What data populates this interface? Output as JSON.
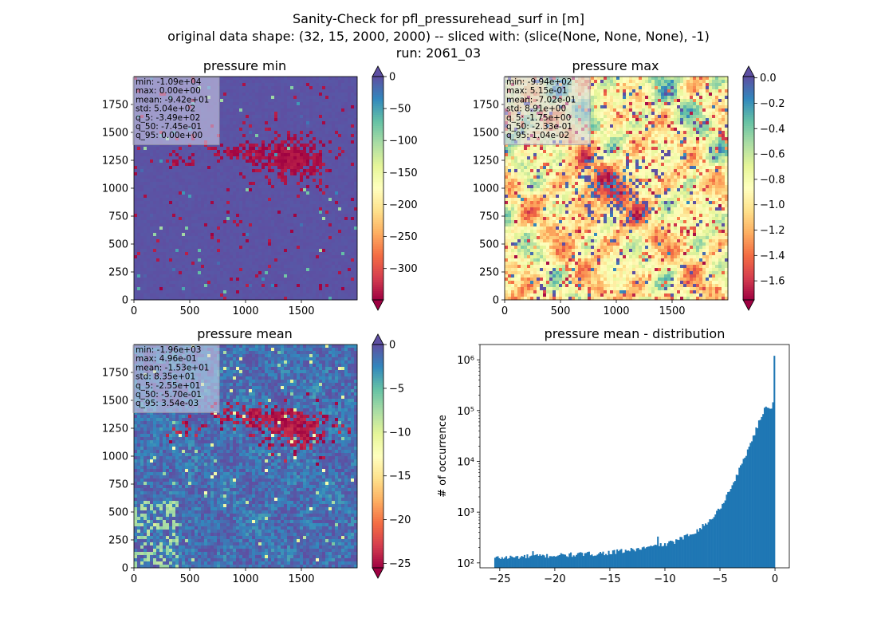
{
  "suptitle": {
    "line1": "Sanity-Check for pfl_pressurehead_surf in [m]",
    "line2": "original data shape: (32, 15, 2000, 2000) -- sliced with: (slice(None, None, None), -1)",
    "line3": "run: 2061_03"
  },
  "colors": {
    "spectral": [
      "#9e0142",
      "#d53e4f",
      "#f46d43",
      "#fdae61",
      "#fee08b",
      "#ffffbf",
      "#e6f598",
      "#abdda4",
      "#66c2a5",
      "#3288bd",
      "#5e4fa2"
    ],
    "hist_bar": "#1f77b4",
    "stats_box_bg": "#c8c8e6"
  },
  "chart_data": [
    {
      "type": "heatmap",
      "title": "pressure min",
      "xticks": [
        0,
        500,
        1000,
        1500
      ],
      "yticks": [
        0,
        250,
        500,
        750,
        1000,
        1250,
        1500,
        1750
      ],
      "xlim": [
        0,
        2000
      ],
      "ylim": [
        0,
        2000
      ],
      "colorbar": {
        "ticks": [
          0,
          -50,
          -100,
          -150,
          -200,
          -250,
          -300
        ],
        "ticklabels": [
          "0",
          "−50",
          "−100",
          "−150",
          "−200",
          "−250",
          "−300"
        ],
        "vmin": -349,
        "vmax": 0,
        "extend": "both"
      },
      "dominant_value": 0,
      "stats": [
        "min: -1.09e+04",
        "max: 0.00e+00",
        "mean: -9.42e+01",
        "std: 5.04e+02",
        "q_5: -3.49e+02",
        "q_50: -7.45e-01",
        "q_95: 0.00e+00"
      ]
    },
    {
      "type": "heatmap",
      "title": "pressure max",
      "xticks": [
        0,
        500,
        1000,
        1500
      ],
      "yticks": [
        0,
        250,
        500,
        750,
        1000,
        1250,
        1500,
        1750
      ],
      "xlim": [
        0,
        2000
      ],
      "ylim": [
        0,
        2000
      ],
      "colorbar": {
        "ticks": [
          0.0,
          -0.2,
          -0.4,
          -0.6,
          -0.8,
          -1.0,
          -1.2,
          -1.4,
          -1.6
        ],
        "ticklabels": [
          "0.0",
          "−0.2",
          "−0.4",
          "−0.6",
          "−0.8",
          "−1.0",
          "−1.2",
          "−1.4",
          "−1.6"
        ],
        "vmin": -1.75,
        "vmax": 0.0104,
        "extend": "both"
      },
      "stats": [
        "min: -9.94e+02",
        "max: 5.15e-01",
        "mean: -7.02e-01",
        "std: 8.91e+00",
        "q_5: -1.75e+00",
        "q_50: -2.33e-01",
        "q_95: 1.04e-02"
      ]
    },
    {
      "type": "heatmap",
      "title": "pressure mean",
      "xticks": [
        0,
        500,
        1000,
        1500
      ],
      "yticks": [
        0,
        250,
        500,
        750,
        1000,
        1250,
        1500,
        1750
      ],
      "xlim": [
        0,
        2000
      ],
      "ylim": [
        0,
        2000
      ],
      "colorbar": {
        "ticks": [
          0,
          -5,
          -10,
          -15,
          -20,
          -25
        ],
        "ticklabels": [
          "0",
          "−5",
          "−10",
          "−15",
          "−20",
          "−25"
        ],
        "vmin": -25.5,
        "vmax": 0.00354,
        "extend": "both"
      },
      "stats": [
        "min: -1.96e+03",
        "max: 4.96e-01",
        "mean: -1.53e+01",
        "std: 8.35e+01",
        "q_5: -2.55e+01",
        "q_50: -5.70e-01",
        "q_95: 3.54e-03"
      ]
    },
    {
      "type": "bar",
      "title": "pressure mean - distribution",
      "xlabel": "",
      "ylabel": "# of occurrence",
      "yscale": "log",
      "xlim": [
        -26.8,
        1.3
      ],
      "ylim": [
        80,
        2000000
      ],
      "xticks": [
        -25,
        -20,
        -15,
        -10,
        -5,
        0
      ],
      "xticklabels": [
        "−25",
        "−20",
        "−15",
        "−10",
        "−5",
        "0"
      ],
      "yticks": [
        100,
        1000,
        10000,
        100000,
        1000000
      ],
      "yticklabels": [
        "10²",
        "10³",
        "10⁴",
        "10⁵",
        "10⁶"
      ],
      "bin_range": [
        -25.5,
        0.0
      ],
      "bins": 200,
      "anchor_points": [
        [
          -25.5,
          125
        ],
        [
          -22,
          135
        ],
        [
          -20,
          140
        ],
        [
          -17,
          150
        ],
        [
          -15,
          160
        ],
        [
          -13,
          180
        ],
        [
          -11,
          210
        ],
        [
          -10,
          230
        ],
        [
          -9,
          270
        ],
        [
          -8,
          340
        ],
        [
          -7,
          450
        ],
        [
          -6,
          650
        ],
        [
          -5,
          1200
        ],
        [
          -4,
          3000
        ],
        [
          -3,
          9000
        ],
        [
          -2,
          30000
        ],
        [
          -1.2,
          80000
        ],
        [
          -0.8,
          130000
        ],
        [
          -0.4,
          110000
        ],
        [
          -0.2,
          130000
        ],
        [
          0,
          1200000
        ]
      ],
      "spikes": [
        [
          -22,
          170
        ],
        [
          -10.6,
          330
        ],
        [
          -0.05,
          1200000
        ]
      ]
    }
  ]
}
